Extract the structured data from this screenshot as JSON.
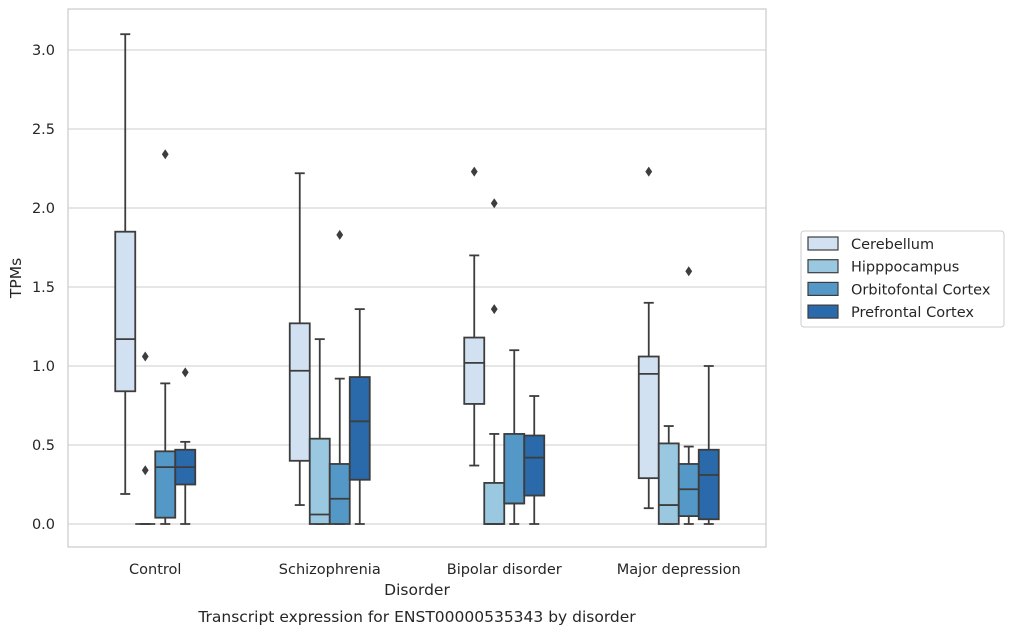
{
  "chart_data": {
    "type": "box",
    "xlabel": "Disorder",
    "ylabel": "TPMs",
    "caption": "Transcript expression for ENST00000535343 by disorder",
    "ylim": [
      -0.15,
      3.26
    ],
    "yticks": [
      "0.0",
      "0.5",
      "1.0",
      "1.5",
      "2.0",
      "2.5",
      "3.0"
    ],
    "grid": "horizontal",
    "legend_position": "right",
    "categories": [
      "Control",
      "Schizophrenia",
      "Bipolar disorder",
      "Major depression"
    ],
    "series": [
      {
        "name": "Cerebellum",
        "color": "#d2e1f1",
        "boxes": [
          {
            "whislo": 0.19,
            "q1": 0.84,
            "med": 1.17,
            "q3": 1.85,
            "whishi": 3.1,
            "fliers": []
          },
          {
            "whislo": 0.12,
            "q1": 0.4,
            "med": 0.97,
            "q3": 1.27,
            "whishi": 2.22,
            "fliers": []
          },
          {
            "whislo": 0.37,
            "q1": 0.76,
            "med": 1.02,
            "q3": 1.18,
            "whishi": 1.7,
            "fliers": [
              2.23
            ]
          },
          {
            "whislo": 0.1,
            "q1": 0.29,
            "med": 0.95,
            "q3": 1.06,
            "whishi": 1.4,
            "fliers": [
              2.23
            ]
          }
        ]
      },
      {
        "name": "Hipppocampus",
        "color": "#9ac8e0",
        "boxes": [
          {
            "whislo": 0.0,
            "q1": 0.0,
            "med": 0.0,
            "q3": 0.0,
            "whishi": 0.0,
            "fliers": [
              1.06,
              0.34
            ]
          },
          {
            "whislo": 0.0,
            "q1": 0.0,
            "med": 0.06,
            "q3": 0.54,
            "whishi": 1.17,
            "fliers": []
          },
          {
            "whislo": 0.0,
            "q1": 0.0,
            "med": 0.0,
            "q3": 0.26,
            "whishi": 0.57,
            "fliers": [
              2.03,
              1.36
            ]
          },
          {
            "whislo": 0.0,
            "q1": 0.0,
            "med": 0.12,
            "q3": 0.51,
            "whishi": 0.62,
            "fliers": []
          }
        ]
      },
      {
        "name": "Orbitofontal Cortex",
        "color": "#5498c7",
        "boxes": [
          {
            "whislo": 0.0,
            "q1": 0.04,
            "med": 0.36,
            "q3": 0.46,
            "whishi": 0.89,
            "fliers": [
              2.34
            ]
          },
          {
            "whislo": 0.0,
            "q1": 0.0,
            "med": 0.16,
            "q3": 0.38,
            "whishi": 0.92,
            "fliers": [
              1.83
            ]
          },
          {
            "whislo": 0.0,
            "q1": 0.13,
            "med": 0.13,
            "q3": 0.57,
            "whishi": 1.1,
            "fliers": []
          },
          {
            "whislo": 0.0,
            "q1": 0.05,
            "med": 0.22,
            "q3": 0.38,
            "whishi": 0.49,
            "fliers": [
              1.6
            ]
          }
        ]
      },
      {
        "name": "Prefrontal Cortex",
        "color": "#2a69aa",
        "boxes": [
          {
            "whislo": 0.0,
            "q1": 0.25,
            "med": 0.36,
            "q3": 0.47,
            "whishi": 0.52,
            "fliers": [
              0.96
            ]
          },
          {
            "whislo": 0.0,
            "q1": 0.28,
            "med": 0.65,
            "q3": 0.93,
            "whishi": 1.36,
            "fliers": []
          },
          {
            "whislo": 0.0,
            "q1": 0.18,
            "med": 0.42,
            "q3": 0.56,
            "whishi": 0.81,
            "fliers": []
          },
          {
            "whislo": 0.0,
            "q1": 0.03,
            "med": 0.31,
            "q3": 0.47,
            "whishi": 1.0,
            "fliers": []
          }
        ]
      }
    ]
  }
}
